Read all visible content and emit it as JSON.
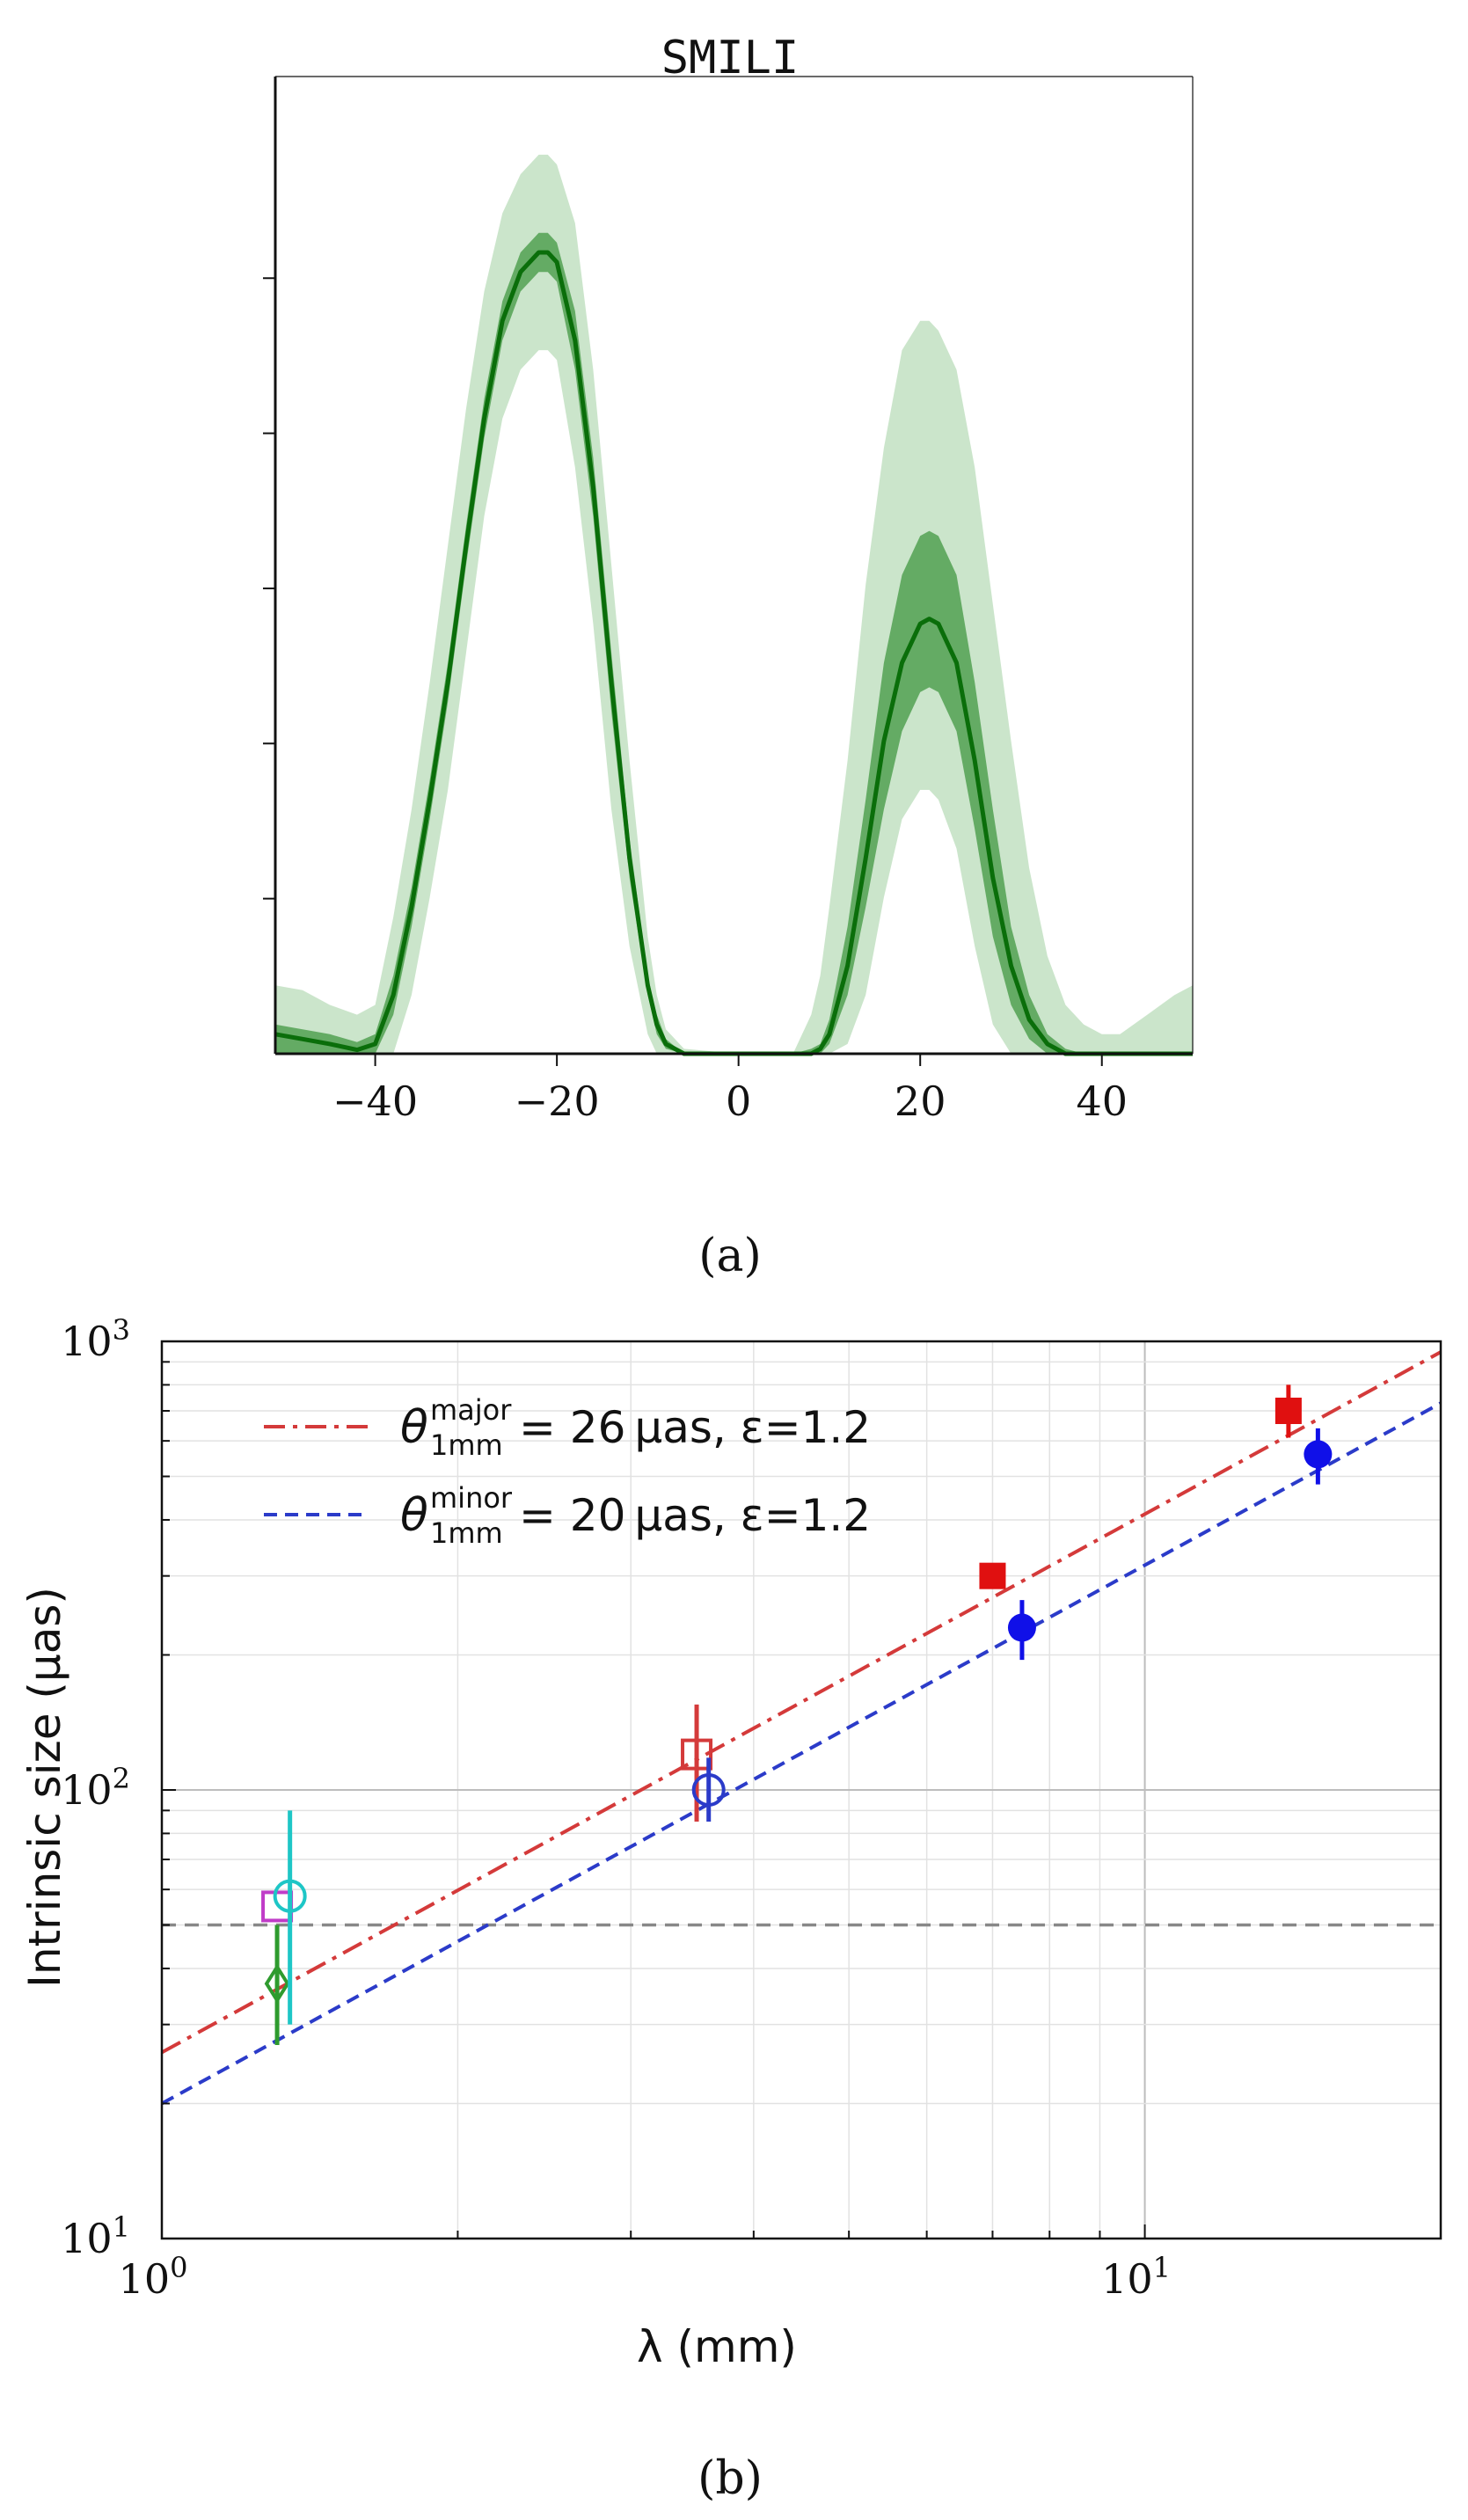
{
  "panel_a": {
    "caption": "(a)",
    "title": "SMILI",
    "chart_data": {
      "type": "area",
      "title": "SMILI",
      "xlabel": "",
      "ylabel": "",
      "xlim": [
        -51,
        50
      ],
      "ylim": [
        0,
        1.0
      ],
      "x_ticks": [
        -40,
        -20,
        0,
        20,
        40
      ],
      "x_tick_labels": [
        "−40",
        "−20",
        "0",
        "20",
        "40"
      ],
      "y_tick_count": 5,
      "colors": {
        "line": "#0a6e0a",
        "band_inner": "#4a9c4a",
        "band_outer": "#b9dcb9"
      },
      "profile": {
        "x": [
          -51,
          -48,
          -45,
          -42,
          -40,
          -38,
          -36,
          -34,
          -32,
          -30,
          -28,
          -26,
          -24,
          -22,
          -21,
          -20,
          -18,
          -16,
          -14,
          -12,
          -10,
          -9,
          -8,
          -6,
          0,
          6,
          8,
          9,
          10,
          12,
          14,
          16,
          18,
          20,
          21,
          22,
          24,
          26,
          28,
          30,
          32,
          34,
          36,
          38,
          40,
          42,
          45,
          48,
          50
        ],
        "median": [
          0.02,
          0.015,
          0.01,
          0.004,
          0.01,
          0.06,
          0.15,
          0.26,
          0.38,
          0.52,
          0.65,
          0.75,
          0.8,
          0.82,
          0.82,
          0.81,
          0.73,
          0.58,
          0.38,
          0.2,
          0.07,
          0.03,
          0.01,
          0,
          0,
          0,
          0,
          0.005,
          0.02,
          0.09,
          0.2,
          0.32,
          0.4,
          0.44,
          0.445,
          0.44,
          0.4,
          0.3,
          0.18,
          0.09,
          0.035,
          0.01,
          0,
          0,
          0,
          0,
          0,
          0,
          0
        ],
        "inner_low": [
          0,
          0,
          0,
          0,
          0,
          0.04,
          0.13,
          0.24,
          0.36,
          0.5,
          0.63,
          0.73,
          0.78,
          0.8,
          0.8,
          0.79,
          0.7,
          0.55,
          0.35,
          0.18,
          0.06,
          0.02,
          0.005,
          0,
          0,
          0,
          0,
          0,
          0.01,
          0.06,
          0.15,
          0.25,
          0.33,
          0.37,
          0.375,
          0.37,
          0.33,
          0.23,
          0.12,
          0.05,
          0.015,
          0,
          0,
          0,
          0,
          0,
          0,
          0,
          0
        ],
        "inner_high": [
          0.03,
          0.025,
          0.02,
          0.012,
          0.02,
          0.08,
          0.17,
          0.28,
          0.4,
          0.54,
          0.67,
          0.77,
          0.82,
          0.84,
          0.84,
          0.83,
          0.76,
          0.61,
          0.41,
          0.22,
          0.08,
          0.04,
          0.015,
          0,
          0,
          0,
          0.005,
          0.01,
          0.035,
          0.13,
          0.26,
          0.4,
          0.49,
          0.53,
          0.535,
          0.53,
          0.49,
          0.38,
          0.25,
          0.13,
          0.06,
          0.02,
          0.005,
          0,
          0,
          0,
          0,
          0,
          0
        ],
        "outer_low": [
          0,
          0,
          0,
          0,
          0,
          0,
          0.06,
          0.16,
          0.27,
          0.41,
          0.55,
          0.65,
          0.7,
          0.72,
          0.72,
          0.71,
          0.6,
          0.44,
          0.25,
          0.11,
          0.02,
          0,
          0,
          0,
          0,
          0,
          0,
          0,
          0,
          0.01,
          0.06,
          0.16,
          0.24,
          0.27,
          0.27,
          0.26,
          0.21,
          0.11,
          0.03,
          0,
          0,
          0,
          0,
          0,
          0,
          0,
          0,
          0,
          0
        ],
        "outer_high": [
          0.07,
          0.065,
          0.05,
          0.04,
          0.05,
          0.14,
          0.25,
          0.38,
          0.52,
          0.66,
          0.78,
          0.86,
          0.9,
          0.92,
          0.92,
          0.91,
          0.85,
          0.7,
          0.5,
          0.3,
          0.12,
          0.06,
          0.025,
          0.005,
          0,
          0,
          0.04,
          0.08,
          0.15,
          0.3,
          0.48,
          0.62,
          0.72,
          0.75,
          0.75,
          0.74,
          0.7,
          0.6,
          0.46,
          0.32,
          0.19,
          0.1,
          0.05,
          0.03,
          0.02,
          0.02,
          0.04,
          0.06,
          0.07
        ]
      }
    }
  },
  "panel_b": {
    "caption": "(b)",
    "chart_data": {
      "type": "scatter",
      "xscale": "log",
      "yscale": "log",
      "xlabel": "λ (mm)",
      "ylabel": "Intrinsic size (μas)",
      "xlim": [
        1.0,
        20.0
      ],
      "ylim": [
        10,
        1000
      ],
      "x_tick_labels": [
        {
          "base": "10",
          "exp": "0"
        },
        {
          "base": "10",
          "exp": "1"
        }
      ],
      "y_tick_labels": [
        {
          "base": "10",
          "exp": "1"
        },
        {
          "base": "10",
          "exp": "2"
        },
        {
          "base": "10",
          "exp": "3"
        }
      ],
      "legend_position": "top-left",
      "hline": {
        "y": 50,
        "color": "#888888"
      },
      "lines": [
        {
          "name": "major",
          "theta_text": "θ",
          "sup_text": "major",
          "sub_text": "1mm",
          "eq_text": " = 26 μas, ε=1.2",
          "theta_1mm": 26,
          "exponent": 1.2,
          "color": "#d43a3a",
          "style": "dashdot"
        },
        {
          "name": "minor",
          "theta_text": "θ",
          "sup_text": "minor",
          "sub_text": "1mm",
          "eq_text": " = 20 μas, ε=1.2",
          "theta_1mm": 20,
          "exponent": 1.2,
          "color": "#2b3bc9",
          "style": "dashed"
        }
      ],
      "points": [
        {
          "x": 1.31,
          "y": 55,
          "ylo": 55,
          "yhi": 55,
          "marker": "square",
          "filled": false,
          "color": "#c03cc8"
        },
        {
          "x": 1.31,
          "y": 37,
          "ylo": 27,
          "yhi": 50,
          "marker": "diamond",
          "filled": false,
          "color": "#2e9b2e"
        },
        {
          "x": 1.35,
          "y": 58,
          "ylo": 30,
          "yhi": 90,
          "marker": "circle",
          "filled": false,
          "color": "#1ec6c6"
        },
        {
          "x": 3.5,
          "y": 120,
          "ylo": 85,
          "yhi": 155,
          "marker": "square",
          "filled": false,
          "color": "#d43a3a"
        },
        {
          "x": 3.6,
          "y": 100,
          "ylo": 85,
          "yhi": 118,
          "marker": "circle",
          "filled": false,
          "color": "#2b3bc9"
        },
        {
          "x": 7.0,
          "y": 300,
          "ylo": 285,
          "yhi": 320,
          "marker": "square",
          "filled": true,
          "color": "#e01010"
        },
        {
          "x": 7.5,
          "y": 230,
          "ylo": 195,
          "yhi": 265,
          "marker": "circle",
          "filled": true,
          "color": "#1010e8"
        },
        {
          "x": 14.0,
          "y": 700,
          "ylo": 610,
          "yhi": 800,
          "marker": "square",
          "filled": true,
          "color": "#e01010"
        },
        {
          "x": 15.0,
          "y": 560,
          "ylo": 480,
          "yhi": 640,
          "marker": "circle",
          "filled": true,
          "color": "#1010e8"
        }
      ]
    }
  }
}
